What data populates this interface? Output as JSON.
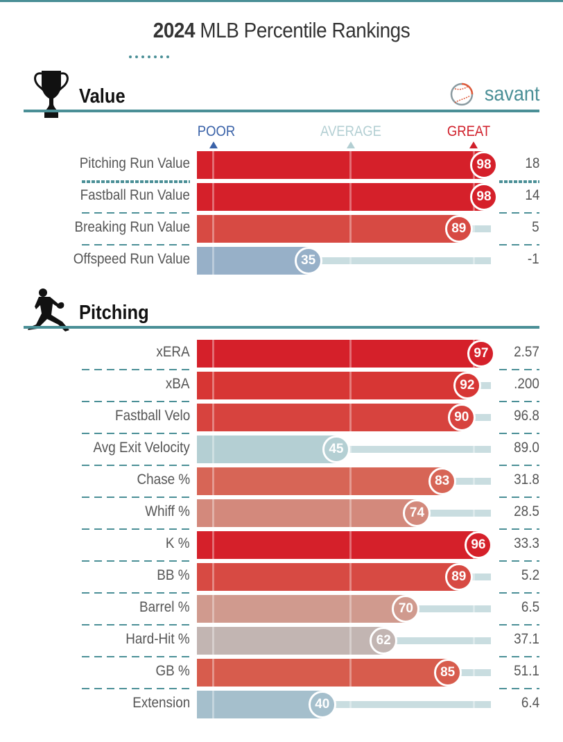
{
  "header": {
    "title_year": "2024",
    "title_rest": "MLB Percentile Rankings"
  },
  "sections": {
    "value": {
      "title": "Value",
      "icon": "trophy-icon",
      "logo_text": "savant",
      "logo_icon": "baseball-icon"
    },
    "pitching": {
      "title": "Pitching",
      "icon": "pitcher-icon"
    }
  },
  "legend": {
    "poor": "POOR",
    "average": "AVERAGE",
    "great": "GREAT",
    "colors": {
      "poor": "#3a62a8",
      "average": "#b3cfd3",
      "great": "#d01f2a"
    }
  },
  "chart_data": {
    "type": "bar",
    "title": "2024 MLB Percentile Rankings",
    "xlim": [
      0,
      100
    ],
    "groups": [
      {
        "name": "Value",
        "metrics": [
          {
            "label": "Pitching Run Value",
            "percentile": 98,
            "value": "18",
            "color": "#d5202a"
          },
          {
            "label": "Fastball Run Value",
            "percentile": 98,
            "value": "14",
            "color": "#d5202a"
          },
          {
            "label": "Breaking Run Value",
            "percentile": 89,
            "value": "5",
            "color": "#d74a43"
          },
          {
            "label": "Offspeed Run Value",
            "percentile": 35,
            "value": "-1",
            "color": "#97b0c8"
          }
        ]
      },
      {
        "name": "Pitching",
        "metrics": [
          {
            "label": "xERA",
            "percentile": 97,
            "value": "2.57",
            "color": "#d5202a"
          },
          {
            "label": "xBA",
            "percentile": 92,
            "value": ".200",
            "color": "#d73634"
          },
          {
            "label": "Fastball Velo",
            "percentile": 90,
            "value": "96.8",
            "color": "#d7433e"
          },
          {
            "label": "Avg Exit Velocity",
            "percentile": 45,
            "value": "89.0",
            "color": "#b4cfd3"
          },
          {
            "label": "Chase %",
            "percentile": 83,
            "value": "31.8",
            "color": "#d76556"
          },
          {
            "label": "Whiff %",
            "percentile": 74,
            "value": "28.5",
            "color": "#d3897c"
          },
          {
            "label": "K %",
            "percentile": 96,
            "value": "33.3",
            "color": "#d5202a"
          },
          {
            "label": "BB %",
            "percentile": 89,
            "value": "5.2",
            "color": "#d74a43"
          },
          {
            "label": "Barrel %",
            "percentile": 70,
            "value": "6.5",
            "color": "#d09a8e"
          },
          {
            "label": "Hard-Hit %",
            "percentile": 62,
            "value": "37.1",
            "color": "#c2b5b2"
          },
          {
            "label": "GB %",
            "percentile": 85,
            "value": "51.1",
            "color": "#d75c4d"
          },
          {
            "label": "Extension",
            "percentile": 40,
            "value": "6.4",
            "color": "#a5bfcc"
          }
        ]
      }
    ]
  }
}
